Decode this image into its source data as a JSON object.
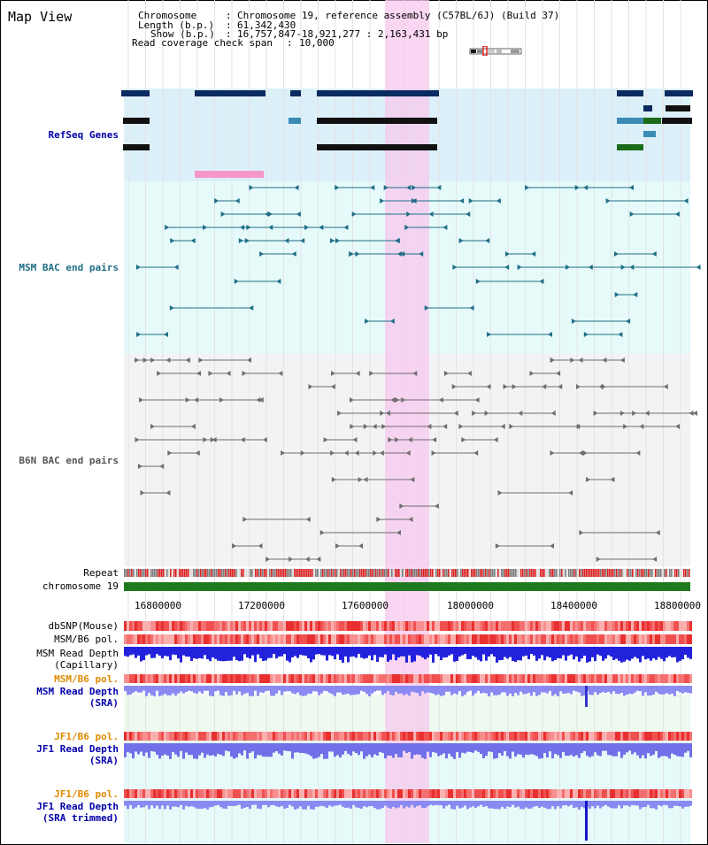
{
  "title": "Map View",
  "info": {
    "chromosome_label": "Chromosome",
    "chromosome_value": "Chromosome 19, reference assembly (C57BL/6J) (Build 37)",
    "length_label": "Length (b.p.)",
    "length_value": "61,342,430",
    "show_label": "Show (b.p.)",
    "show_value": "16,757,847-18,921,277 : 2,163,431 bp",
    "coverage_label": "Read coverage check span",
    "coverage_value": "10,000",
    "sep": ":"
  },
  "tracks": {
    "refseq": "RefSeq Genes",
    "msm_bac": "MSM BAC end pairs",
    "b6n_bac": "B6N BAC end pairs",
    "repeat": "Repeat",
    "chromosome": "chromosome 19",
    "dbsnp": "dbSNP(Mouse)",
    "msm_b6_pol_1": "MSM/B6 pol.",
    "msm_depth_cap": "MSM Read Depth",
    "msm_depth_cap_sub": "(Capillary)",
    "msm_b6_pol_2": "MSM/B6 pol.",
    "msm_depth_sra": "MSM Read Depth",
    "msm_depth_sra_sub": "(SRA)",
    "jf1_pol_1": "JF1/B6 pol.",
    "jf1_depth_sra": "JF1 Read Depth",
    "jf1_depth_sra_sub": "(SRA)",
    "jf1_pol_2": "JF1/B6 pol.",
    "jf1_depth_trim": "JF1 Read Depth",
    "jf1_depth_trim_sub": "(SRA trimmed)"
  },
  "axis": {
    "ticks": [
      "16800000",
      "17200000",
      "17600000",
      "18000000",
      "18400000",
      "18800000"
    ]
  },
  "colors": {
    "refseq_bg": "#dcf0fa",
    "msm_bg": "#e6fafa",
    "b6n_bg": "#f3f3f5",
    "highlight": "#f7c8ee",
    "chromosome_bar": "#1f7a1f",
    "msm_pair": "#1f6e86",
    "b6n_pair": "#6e6e6e",
    "label_blue": "#0000aa",
    "label_orange": "#e08a00",
    "depth_blue": "#2222dd"
  }
}
